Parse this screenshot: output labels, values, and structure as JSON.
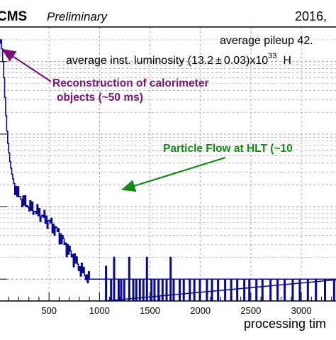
{
  "header": {
    "experiment": "CMS",
    "status": "Preliminary",
    "year": "2016,",
    "pileup": "average pileup 42.",
    "lumi_prefix": "average inst. luminosity (13.2",
    "lumi_pm": "±",
    "lumi_mid": "0.03)x10",
    "lumi_exp": "33",
    "lumi_suffix": "H"
  },
  "annotations": {
    "calo_line1": "Reconstruction of calorimeter",
    "calo_line2": "objects (~50 ms)",
    "pf": "Particle Flow at HLT (~10"
  },
  "colors": {
    "histogram": "#0a0a8c",
    "calo_annotation": "#7a1277",
    "pf_annotation": "#138a13",
    "grid": "#8c8c8c",
    "axis": "#000000"
  },
  "chart_data": {
    "type": "histogram",
    "xlabel": "processing tim",
    "x_ticks": [
      "500",
      "1000",
      "1500",
      "2000",
      "2500",
      "3000"
    ],
    "x_tick_values": [
      500,
      1000,
      1500,
      2000,
      2500,
      3000
    ],
    "xlim": [
      0,
      3400
    ],
    "y_scale": "log",
    "ylim": [
      0.5,
      3000
    ],
    "y_decades": [
      1,
      10,
      100,
      1000
    ],
    "bin_width": 10,
    "series": [
      {
        "values": [
          1200,
          1800,
          2000,
          1500,
          1000,
          600,
          320,
          180,
          110,
          75,
          55,
          42,
          34,
          28,
          24,
          21,
          19,
          17,
          16,
          15,
          14.2,
          13.6,
          13.0,
          12.5,
          12.0,
          11.6,
          11.3,
          11.0,
          10.7,
          10.4,
          10.2,
          9.9,
          9.7,
          9.5,
          9.3,
          9.1,
          8.9,
          8.7,
          8.5,
          8.3,
          8.1,
          7.9,
          7.7,
          7.5,
          7.3,
          7.1,
          6.9,
          6.7,
          6.5,
          6.3,
          6.1,
          5.9,
          5.7,
          5.5,
          5.3,
          5.1,
          4.9,
          4.7,
          4.5,
          4.3,
          4.1,
          3.9,
          3.7,
          3.5,
          3.3,
          3.1,
          2.9,
          2.8,
          2.7,
          2.5,
          2.4,
          2.3,
          2.2,
          2.1,
          2.0,
          1.9,
          1.8,
          1.7,
          1.6,
          1.5,
          1.45,
          1.4,
          1.35,
          1.3,
          1.25,
          1.2,
          1.15,
          1.1,
          1.05,
          1.0,
          1.0,
          1.0,
          1.0,
          1.0,
          1.0,
          1.0,
          1.0,
          1.0,
          1.0,
          1.0,
          1.0,
          1.0,
          1.0,
          1.0,
          1.0,
          1.0,
          1.0,
          1.0,
          1.0,
          1.0,
          1.0,
          1.0,
          1.0,
          1.0,
          1.0,
          1.0,
          1.0,
          1.0,
          1.0,
          1.0,
          1.0,
          1.0,
          1.0,
          1.0,
          1.0,
          1.0,
          1.0,
          1.0,
          1.0,
          1.0,
          1.0,
          1.0,
          1.0,
          1.0,
          1.0,
          1.0,
          1.0,
          1.0,
          1.0,
          1.0,
          1.0,
          1.0,
          1.0,
          1.0,
          1.0,
          1.0,
          1.0,
          1.0,
          1.0,
          1.0,
          1.0,
          1.0,
          1.0,
          1.0,
          1.0,
          1.0,
          1.0,
          1.0,
          1.0,
          1.0,
          1.0,
          1.0,
          1.0,
          1.0,
          1.0,
          1.0,
          1.0,
          1.0,
          1.0,
          1.0,
          1.0,
          1.0,
          1.0,
          1.0,
          1.0,
          1.0,
          1.0,
          1.0,
          1.0,
          1.0,
          1.0,
          1.0,
          1.0,
          1.0,
          1.0,
          1.0,
          1.0,
          1.0,
          1.0,
          1.0,
          1.0,
          1.0,
          1.0,
          1.0,
          1.0,
          1.0,
          1.0,
          1.0,
          1.0,
          1.0,
          1.0,
          1.0,
          1.0,
          1.0,
          1.0,
          1.0,
          1.0,
          1.0,
          1.0,
          1.0,
          1.0,
          1.0,
          1.0,
          1.0,
          1.0,
          1.0,
          1.0,
          1.0,
          1.0,
          1.0,
          1.0,
          1.0,
          1.0,
          1.0,
          1.0,
          1.0,
          1.0,
          1.0,
          1.0,
          1.0,
          1.0,
          1.0,
          1.0,
          1.0,
          1.0,
          1.0,
          1.0,
          1.0,
          1.0,
          1.0,
          1.0,
          1.0,
          1.0,
          1.0,
          1.0,
          1.0,
          1.0,
          1.0,
          1.0,
          1.0,
          1.0,
          1.0,
          1.0,
          1.0,
          1.0,
          1.0,
          1.0,
          1.0,
          1.0,
          1.0,
          1.0,
          1.0,
          1.0,
          1.0,
          1.0,
          1.0,
          1.0,
          1.0,
          1.0,
          1.0,
          1.0,
          1.0,
          1.0,
          1.0,
          1.0,
          1.0,
          1.0,
          1.0,
          1.0,
          1.0,
          1.0,
          1.0,
          1.0,
          1.0,
          1.0,
          1.0,
          1.0,
          1.0,
          1.0,
          1.0,
          1.0,
          1.0,
          1.0,
          1.0,
          1.0,
          1.0,
          1.0,
          1.0,
          1.0,
          1.0,
          1.0,
          1.0,
          1.0,
          1.0,
          1.0,
          1.0,
          1.0,
          1.0,
          1.0,
          1.0,
          1.0,
          1.0,
          1.0,
          1.0,
          1.0,
          1.0,
          1.0,
          1.0,
          1.0,
          1.0,
          1.0,
          1.0,
          1.0,
          1.0,
          1.0,
          1.0,
          1.0,
          1.0,
          1.0,
          1.0,
          1.0,
          1.0,
          1.0,
          1.0,
          1.0,
          1.0,
          1.0,
          1.0,
          1.0,
          1.0,
          1.0,
          1.0
        ]
      }
    ],
    "sparse_bins_x": [
      1060,
      1110,
      1140,
      1185,
      1210,
      1240,
      1290,
      1330,
      1360,
      1395,
      1430,
      1465,
      1510,
      1540,
      1580,
      1620,
      1660,
      1700,
      1730,
      1790,
      1830,
      1890,
      1935,
      1990,
      2060,
      2110,
      2170,
      2240,
      2300,
      2360,
      2430,
      2480,
      2550,
      2610,
      2690,
      2760,
      2830,
      2910,
      2980,
      3060,
      3140,
      3230,
      3320
    ],
    "sparse_bins_y": [
      1.5,
      1,
      2,
      1,
      1,
      1,
      2,
      1,
      1,
      1,
      1,
      2,
      1,
      1,
      1,
      1,
      1,
      2,
      1,
      1,
      1,
      1,
      1,
      1,
      1,
      1,
      1,
      1,
      1,
      1,
      1,
      1,
      1,
      1,
      1,
      1,
      1,
      1,
      1,
      1,
      1,
      1,
      1
    ]
  }
}
